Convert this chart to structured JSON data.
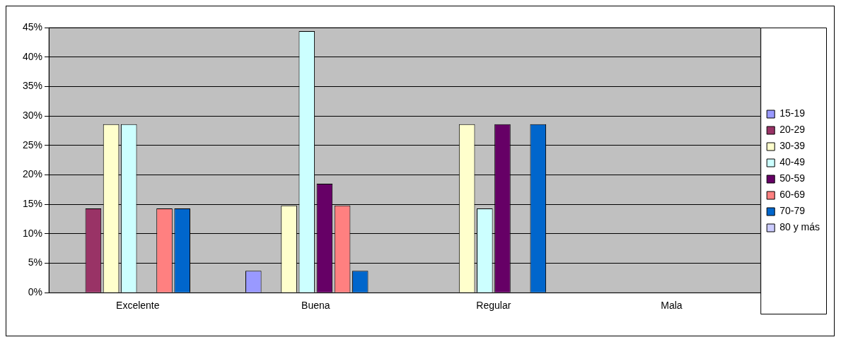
{
  "chart_data": {
    "type": "bar",
    "categories": [
      "Excelente",
      "Buena",
      "Regular",
      "Mala"
    ],
    "series": [
      {
        "name": "15-19",
        "color": "#9999ff",
        "values": [
          0,
          3.7,
          0,
          0
        ]
      },
      {
        "name": "20-29",
        "color": "#993366",
        "values": [
          14.3,
          0,
          0,
          0
        ]
      },
      {
        "name": "30-39",
        "color": "#ffffcc",
        "values": [
          28.6,
          14.8,
          28.6,
          0
        ]
      },
      {
        "name": "40-49",
        "color": "#ccffff",
        "values": [
          28.6,
          44.4,
          14.3,
          0
        ]
      },
      {
        "name": "50-59",
        "color": "#660066",
        "values": [
          0,
          18.5,
          28.6,
          0
        ]
      },
      {
        "name": "60-69",
        "color": "#ff8080",
        "values": [
          14.3,
          14.8,
          0,
          0
        ]
      },
      {
        "name": "70-79",
        "color": "#0066cc",
        "values": [
          14.3,
          3.7,
          28.6,
          0
        ]
      },
      {
        "name": "80 y más",
        "color": "#ccccff",
        "values": [
          0,
          0,
          0,
          0
        ]
      }
    ],
    "ylim": [
      0,
      45
    ],
    "yticks": [
      {
        "value": 0,
        "label": "0%"
      },
      {
        "value": 5,
        "label": "5%"
      },
      {
        "value": 10,
        "label": "10%"
      },
      {
        "value": 15,
        "label": "15%"
      },
      {
        "value": 20,
        "label": "20%"
      },
      {
        "value": 25,
        "label": "25%"
      },
      {
        "value": 30,
        "label": "30%"
      },
      {
        "value": 35,
        "label": "35%"
      },
      {
        "value": 40,
        "label": "40%"
      },
      {
        "value": 45,
        "label": "45%"
      }
    ],
    "grid": "y",
    "legend": "right"
  }
}
